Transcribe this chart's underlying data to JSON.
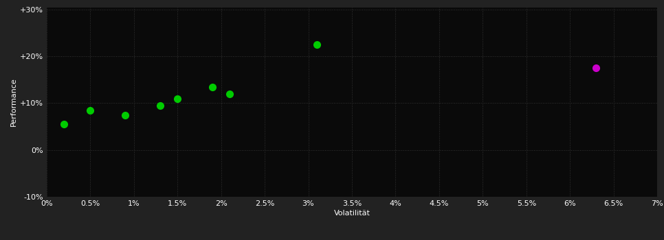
{
  "background_color": "#222222",
  "plot_bg_color": "#0a0a0a",
  "grid_color": "#333333",
  "text_color": "#ffffff",
  "xlabel": "Volatilität",
  "ylabel": "Performance",
  "xlim": [
    0,
    0.07
  ],
  "ylim": [
    -0.1,
    0.305
  ],
  "xticks": [
    0.0,
    0.005,
    0.01,
    0.015,
    0.02,
    0.025,
    0.03,
    0.035,
    0.04,
    0.045,
    0.05,
    0.055,
    0.06,
    0.065,
    0.07
  ],
  "xtick_labels": [
    "0%",
    "0.5%",
    "1%",
    "1.5%",
    "2%",
    "2.5%",
    "3%",
    "3.5%",
    "4%",
    "4.5%",
    "5%",
    "5.5%",
    "6%",
    "6.5%",
    "7%"
  ],
  "yticks": [
    -0.1,
    0.0,
    0.1,
    0.2,
    0.3
  ],
  "ytick_labels": [
    "-10%",
    "0%",
    "+10%",
    "+20%",
    "+30%"
  ],
  "green_points": [
    [
      0.002,
      0.055
    ],
    [
      0.005,
      0.085
    ],
    [
      0.009,
      0.075
    ],
    [
      0.013,
      0.095
    ],
    [
      0.015,
      0.11
    ],
    [
      0.019,
      0.135
    ],
    [
      0.021,
      0.12
    ],
    [
      0.031,
      0.225
    ]
  ],
  "magenta_points": [
    [
      0.063,
      0.175
    ]
  ],
  "green_color": "#00cc00",
  "magenta_color": "#cc00cc",
  "marker_size": 7,
  "font_size": 8,
  "label_font_size": 8
}
